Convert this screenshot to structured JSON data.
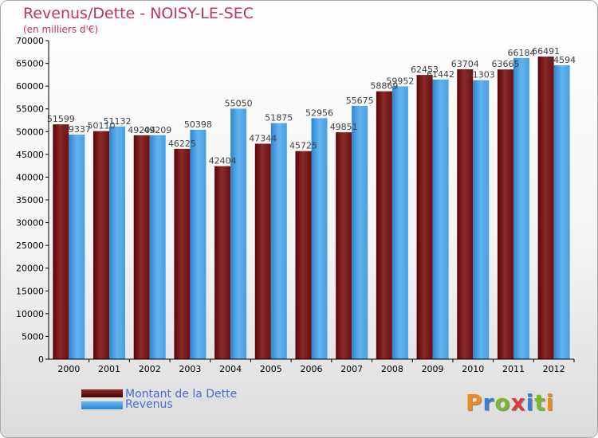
{
  "title": "Revenus/Dette - NOISY-LE-SEC",
  "subtitle": "(en milliers d'€)",
  "logo_text": "Proxiti",
  "colors": {
    "dette_top": "#8b2a2a",
    "dette_bottom": "#5a0404",
    "revenus_top": "#63b3ef",
    "revenus_bottom": "#2e86d0",
    "title": "#c0306a",
    "legend_text": "#4a6ad8"
  },
  "chart_data": {
    "type": "bar",
    "categories": [
      "2000",
      "2001",
      "2002",
      "2003",
      "2004",
      "2005",
      "2006",
      "2007",
      "2008",
      "2009",
      "2010",
      "2011",
      "2012"
    ],
    "series": [
      {
        "name": "Montant de la Dette",
        "values": [
          51599,
          50110,
          49204,
          46225,
          42404,
          47344,
          45725,
          49851,
          58869,
          62453,
          63704,
          63665,
          66491
        ]
      },
      {
        "name": "Revenus",
        "values": [
          49337,
          51132,
          49209,
          50398,
          55050,
          51875,
          52956,
          55675,
          59952,
          61442,
          61303,
          66184,
          64594
        ]
      }
    ],
    "data_labels": [
      [
        "51599",
        "50110",
        "49204",
        "46225",
        "42404",
        "47344",
        "45725",
        "49851",
        "58869",
        "62453",
        "63704",
        "63665",
        "66491"
      ],
      [
        "49337",
        "51132",
        "49209",
        "50398",
        "55050",
        "51875",
        "52956",
        "55675",
        "59952",
        "61442",
        "61303",
        "66184",
        "64594"
      ]
    ],
    "ylim": [
      0,
      70000
    ],
    "yticks": [
      0,
      5000,
      10000,
      15000,
      20000,
      25000,
      30000,
      35000,
      40000,
      45000,
      50000,
      55000,
      60000,
      65000,
      70000
    ],
    "grid": false,
    "legend_position": "bottom-left"
  }
}
